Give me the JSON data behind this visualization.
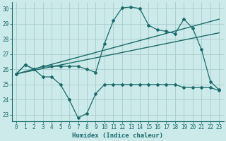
{
  "xlabel": "Humidex (Indice chaleur)",
  "background_color": "#cceaea",
  "grid_color": "#aacccc",
  "line_color": "#1a6b6b",
  "xlim": [
    -0.5,
    23.5
  ],
  "ylim": [
    22.6,
    30.4
  ],
  "xticks": [
    0,
    1,
    2,
    3,
    4,
    5,
    6,
    7,
    8,
    9,
    10,
    11,
    12,
    13,
    14,
    15,
    16,
    17,
    18,
    19,
    20,
    21,
    22,
    23
  ],
  "yticks": [
    23,
    24,
    25,
    26,
    27,
    28,
    29,
    30
  ],
  "series": [
    {
      "x": [
        0,
        1,
        2,
        3,
        4,
        5,
        6,
        7,
        8,
        9,
        10,
        11,
        12,
        13,
        14,
        15,
        16,
        17,
        18,
        19,
        20,
        21,
        22,
        23
      ],
      "y": [
        25.7,
        26.3,
        26.0,
        25.5,
        25.5,
        25.0,
        24.0,
        22.8,
        23.1,
        24.4,
        25.0,
        25.0,
        25.0,
        25.0,
        25.0,
        25.0,
        25.0,
        25.0,
        25.0,
        24.8,
        24.8,
        24.8,
        24.8,
        24.6
      ],
      "marker": "D",
      "markersize": 2.0,
      "linewidth": 0.9
    },
    {
      "x": [
        0,
        1,
        2,
        3,
        4,
        5,
        6,
        7,
        8,
        9,
        10,
        11,
        12,
        13,
        14,
        15,
        16,
        17,
        18,
        19,
        20,
        21,
        22,
        23
      ],
      "y": [
        25.7,
        26.3,
        26.0,
        26.2,
        26.2,
        26.2,
        26.2,
        26.2,
        26.0,
        25.8,
        27.7,
        29.2,
        30.05,
        30.1,
        30.0,
        28.9,
        28.6,
        28.5,
        28.35,
        29.3,
        28.7,
        27.3,
        25.2,
        24.65
      ],
      "marker": "D",
      "markersize": 2.0,
      "linewidth": 0.9
    },
    {
      "x": [
        0,
        23
      ],
      "y": [
        25.7,
        28.4
      ],
      "marker": null,
      "markersize": 0,
      "linewidth": 1.0
    },
    {
      "x": [
        0,
        23
      ],
      "y": [
        25.7,
        29.3
      ],
      "marker": null,
      "markersize": 0,
      "linewidth": 1.0
    }
  ]
}
